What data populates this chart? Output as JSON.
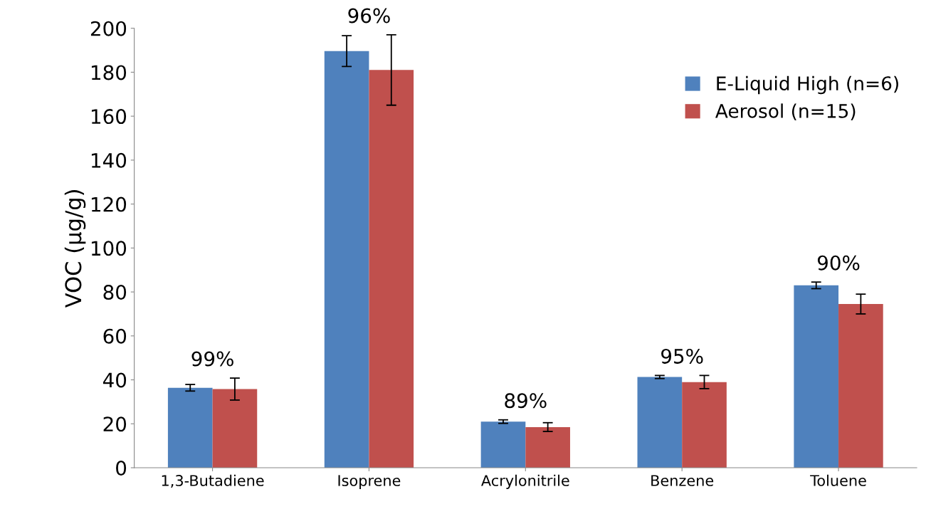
{
  "chart_data": {
    "type": "bar",
    "ylabel": "VOC (µg/g)",
    "categories": [
      "1,3-Butadiene",
      "Isoprene",
      "Acrylonitrile",
      "Benzene",
      "Toluene"
    ],
    "series": [
      {
        "name": "E-Liquid High (n=6)",
        "color": "#4f81bd",
        "values": [
          36.4,
          189.6,
          21,
          41.3,
          83
        ],
        "errors": [
          1.5,
          7,
          0.8,
          0.7,
          1.5
        ]
      },
      {
        "name": "Aerosol (n=15)",
        "color": "#c0504d",
        "values": [
          35.8,
          181,
          18.5,
          39,
          74.5
        ],
        "errors": [
          5,
          16,
          2,
          3,
          4.5
        ]
      }
    ],
    "annotations": [
      "99%",
      "96%",
      "89%",
      "95%",
      "90%"
    ],
    "ylim": [
      0,
      200
    ],
    "yticks": [
      0,
      20,
      40,
      60,
      80,
      100,
      120,
      140,
      160,
      180,
      200
    ],
    "grid": false,
    "legend": "top right"
  }
}
